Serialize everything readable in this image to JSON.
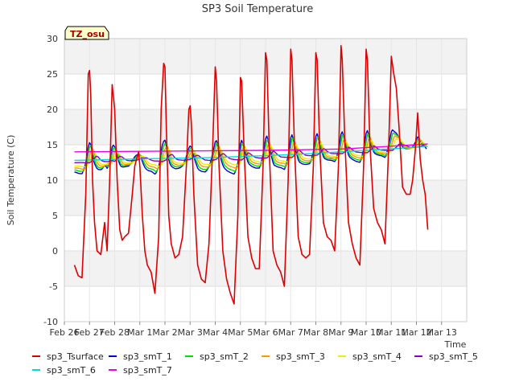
{
  "chart_data": {
    "type": "line",
    "title": "SP3 Soil Temperature",
    "xlabel": "Time",
    "ylabel": "Soil Temperature (C)",
    "ylim": [
      -10,
      30
    ],
    "yticks": [
      -10,
      -5,
      0,
      5,
      10,
      15,
      20,
      25,
      30
    ],
    "xlim": [
      0,
      16
    ],
    "xtick_labels": [
      "Feb 26",
      "Feb 27",
      "Feb 28",
      "Mar 1",
      "Mar 2",
      "Mar 3",
      "Mar 4",
      "Mar 5",
      "Mar 6",
      "Mar 7",
      "Mar 8",
      "Mar 9",
      "Mar 10",
      "Mar 11",
      "Mar 12",
      "Mar 13"
    ],
    "annotation": "TZ_osu",
    "grid": true,
    "legend_position": "bottom",
    "series": [
      {
        "name": "sp3_Tsurface",
        "color": "#dd0000",
        "x": [
          0.4,
          0.55,
          0.7,
          0.85,
          0.95,
          1.0,
          1.05,
          1.12,
          1.2,
          1.3,
          1.45,
          1.6,
          1.7,
          1.8,
          1.9,
          2.0,
          2.1,
          2.2,
          2.3,
          2.4,
          2.55,
          2.7,
          2.8,
          2.95,
          3.0,
          3.1,
          3.2,
          3.3,
          3.45,
          3.6,
          3.75,
          3.85,
          3.95,
          4.0,
          4.05,
          4.15,
          4.25,
          4.4,
          4.55,
          4.7,
          4.85,
          4.95,
          5.0,
          5.05,
          5.15,
          5.3,
          5.45,
          5.6,
          5.75,
          5.9,
          6.0,
          6.05,
          6.15,
          6.3,
          6.45,
          6.6,
          6.75,
          6.9,
          7.0,
          7.05,
          7.15,
          7.3,
          7.45,
          7.6,
          7.75,
          7.9,
          8.0,
          8.05,
          8.15,
          8.3,
          8.45,
          8.6,
          8.75,
          8.9,
          9.0,
          9.05,
          9.15,
          9.3,
          9.45,
          9.6,
          9.75,
          9.9,
          10.0,
          10.05,
          10.15,
          10.3,
          10.45,
          10.6,
          10.75,
          10.9,
          11.0,
          11.05,
          11.15,
          11.3,
          11.45,
          11.6,
          11.75,
          11.9,
          12.0,
          12.05,
          12.15,
          12.3,
          12.45,
          12.6,
          12.75,
          12.9,
          13.0,
          13.1,
          13.2,
          13.3,
          13.45,
          13.6,
          13.75,
          13.85,
          13.95,
          14.05,
          14.15,
          14.25,
          14.35,
          14.45
        ],
        "values": [
          -2.0,
          -3.5,
          -3.8,
          8.0,
          25.0,
          25.5,
          22.0,
          10.0,
          4.0,
          0.0,
          -0.5,
          4.0,
          0.0,
          10.0,
          23.5,
          20.0,
          10.0,
          3.0,
          1.5,
          2.0,
          2.5,
          8.0,
          12.0,
          14.0,
          12.0,
          5.0,
          0.0,
          -2.0,
          -3.0,
          -6.0,
          2.0,
          20.0,
          26.5,
          26.0,
          18.0,
          5.0,
          1.0,
          -1.0,
          -0.5,
          2.0,
          12.0,
          20.0,
          20.5,
          18.0,
          8.0,
          -2.0,
          -4.0,
          -4.5,
          1.0,
          15.0,
          26.0,
          24.0,
          12.0,
          0.0,
          -4.0,
          -6.0,
          -7.5,
          5.0,
          24.5,
          24.0,
          14.0,
          2.0,
          -1.0,
          -2.5,
          -2.5,
          12.0,
          28.0,
          27.0,
          14.0,
          0.0,
          -2.0,
          -3.0,
          -5.0,
          10.0,
          28.5,
          27.0,
          15.0,
          2.0,
          -0.5,
          -1.0,
          -0.5,
          12.0,
          28.0,
          27.0,
          15.0,
          4.0,
          2.0,
          1.5,
          0.0,
          12.0,
          29.0,
          27.0,
          16.0,
          4.0,
          1.0,
          -1.0,
          -2.0,
          12.0,
          28.5,
          27.0,
          15.0,
          6.0,
          4.0,
          3.0,
          1.0,
          15.0,
          27.5,
          25.0,
          23.0,
          18.0,
          9.0,
          8.0,
          8.0,
          10.0,
          14.0,
          19.5,
          13.0,
          10.0,
          8.0,
          3.0
        ]
      },
      {
        "name": "sp3_smT_1",
        "color": "#0000dd",
        "x": [],
        "values": []
      },
      {
        "name": "sp3_smT_2",
        "color": "#00dd00",
        "x": [],
        "values": []
      },
      {
        "name": "sp3_smT_3",
        "color": "#ff9900",
        "x": [],
        "values": []
      },
      {
        "name": "sp3_smT_4",
        "color": "#eeee00",
        "x": [],
        "values": []
      },
      {
        "name": "sp3_smT_5",
        "color": "#8800cc",
        "x": [],
        "values": []
      },
      {
        "name": "sp3_smT_6",
        "color": "#00dddd",
        "x": [
          0.4,
          3.0,
          6.0,
          9.0,
          11.0,
          12.5,
          14.45
        ],
        "values": [
          12.8,
          13.0,
          13.2,
          13.6,
          14.0,
          14.3,
          14.8
        ]
      },
      {
        "name": "sp3_smT_7",
        "color": "#ee00ee",
        "x": [
          0.4,
          4.0,
          8.0,
          11.0,
          13.0,
          14.45
        ],
        "values": [
          14.0,
          14.1,
          14.2,
          14.4,
          14.8,
          15.1
        ]
      }
    ],
    "damped_params": {
      "sp3_smT_1": {
        "amp": 3.0,
        "phase": 0.02
      },
      "sp3_smT_2": {
        "amp": 2.5,
        "phase": 0.06
      },
      "sp3_smT_3": {
        "amp": 2.0,
        "phase": 0.12
      },
      "sp3_smT_4": {
        "amp": 1.5,
        "phase": 0.18
      },
      "sp3_smT_5": {
        "amp": 0.6,
        "phase": 0.3
      }
    }
  }
}
